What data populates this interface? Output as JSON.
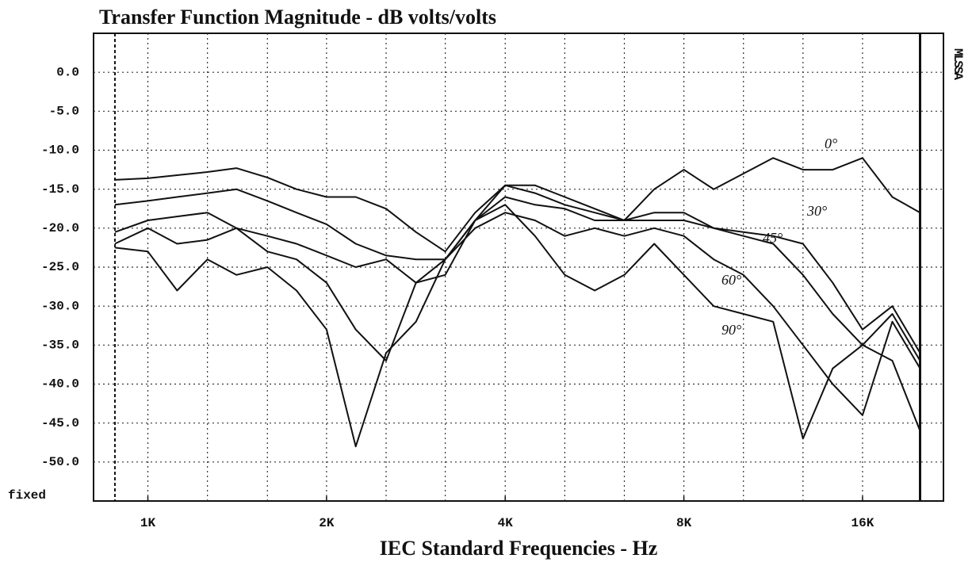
{
  "chart_data": {
    "type": "line",
    "title": "Transfer Function Magnitude - dB volts/volts",
    "xlabel": "IEC Standard Frequencies - Hz",
    "side_label": "MLSSA",
    "y_bottom_label": "fixed",
    "xscale": "log",
    "xlim": [
      810,
      21900
    ],
    "xticks": [
      {
        "value": 1000,
        "label": "1K"
      },
      {
        "value": 2000,
        "label": "2K"
      },
      {
        "value": 4000,
        "label": "4K"
      },
      {
        "value": 8000,
        "label": "8K"
      },
      {
        "value": 16000,
        "label": "16K"
      }
    ],
    "xgrid": [
      1000,
      1260,
      1590,
      2000,
      2520,
      3170,
      4000,
      5040,
      6350,
      8000,
      10080,
      12700,
      16000
    ],
    "ylim": [
      -55,
      5
    ],
    "yticks": [
      {
        "value": 0,
        "label": "0.0"
      },
      {
        "value": -5,
        "label": "-5.0"
      },
      {
        "value": -10,
        "label": "-10.0"
      },
      {
        "value": -15,
        "label": "-15.0"
      },
      {
        "value": -20,
        "label": "-20.0"
      },
      {
        "value": -25,
        "label": "-25.0"
      },
      {
        "value": -30,
        "label": "-30.0"
      },
      {
        "value": -35,
        "label": "-35.0"
      },
      {
        "value": -40,
        "label": "-40.0"
      },
      {
        "value": -45,
        "label": "-45.0"
      },
      {
        "value": -50,
        "label": "-50.0"
      }
    ],
    "grid": true,
    "x": [
      880,
      1000,
      1120,
      1260,
      1410,
      1590,
      1780,
      2000,
      2240,
      2520,
      2830,
      3170,
      3560,
      4000,
      4490,
      5040,
      5660,
      6350,
      7130,
      8000,
      8980,
      10080,
      11310,
      12700,
      14250,
      16000,
      17960,
      20000
    ],
    "series": [
      {
        "name": "0°",
        "color": "#111111",
        "values": [
          -13.8,
          -13.6,
          -13.2,
          -12.8,
          -12.3,
          -13.5,
          -15,
          -16,
          -16,
          -17.5,
          -20.5,
          -23,
          -18,
          -14.5,
          -14.5,
          -16,
          -17.5,
          -19,
          -15,
          -12.5,
          -15,
          -13,
          -11,
          -12.5,
          -12.5,
          -11,
          -16,
          -18
        ]
      },
      {
        "name": "30°",
        "color": "#111111",
        "values": [
          -17,
          -16.5,
          -16,
          -15.5,
          -15,
          -16.5,
          -18,
          -19.5,
          -22,
          -23.5,
          -24,
          -24,
          -19,
          -14.5,
          -15.5,
          -17,
          -18,
          -19,
          -18,
          -18,
          -20,
          -20.5,
          -21,
          -22,
          -27,
          -33,
          -30,
          -36
        ]
      },
      {
        "name": "45°",
        "color": "#111111",
        "values": [
          -20.5,
          -19,
          -18.5,
          -18,
          -20,
          -21,
          -22,
          -23.5,
          -25,
          -24,
          -27,
          -26,
          -19,
          -16,
          -17,
          -17.5,
          -19,
          -19,
          -19,
          -19,
          -20,
          -21,
          -22,
          -26,
          -31,
          -35,
          -31,
          -37
        ]
      },
      {
        "name": "60°",
        "color": "#111111",
        "values": [
          -22,
          -20,
          -22,
          -21.5,
          -20,
          -23,
          -24,
          -27,
          -33,
          -37,
          -27,
          -24,
          -20,
          -18,
          -19,
          -21,
          -20,
          -21,
          -20,
          -21,
          -24,
          -26,
          -30,
          -35,
          -40,
          -44,
          -32,
          -38
        ]
      },
      {
        "name": "90°",
        "color": "#111111",
        "values": [
          -22.5,
          -23,
          -28,
          -24,
          -26,
          -25,
          -28,
          -33,
          -48,
          -36,
          -32,
          -24,
          -19,
          -17,
          -21,
          -26,
          -28,
          -26,
          -22,
          -26,
          -30,
          -31,
          -32,
          -47,
          -38,
          -35,
          -37,
          -46
        ]
      }
    ]
  }
}
